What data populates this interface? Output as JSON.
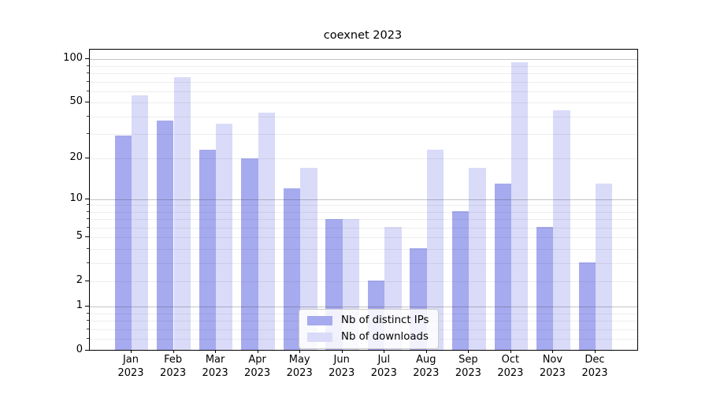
{
  "chart_title": "coexnet 2023",
  "colors": {
    "distinct_ips_bar": "#a6aaef",
    "downloads_bar": "#d9dbf8",
    "grid_major": "#b8b8b8",
    "grid_minor": "#ebebeb",
    "axis": "#000000",
    "legend_border": "#cccccc"
  },
  "chart_data": {
    "type": "bar",
    "title": "coexnet 2023",
    "categories": [
      "Jan 2023",
      "Feb 2023",
      "Mar 2023",
      "Apr 2023",
      "May 2023",
      "Jun 2023",
      "Jul 2023",
      "Aug 2023",
      "Sep 2023",
      "Oct 2023",
      "Nov 2023",
      "Dec 2023"
    ],
    "x_months": [
      "Jan",
      "Feb",
      "Mar",
      "Apr",
      "May",
      "Jun",
      "Jul",
      "Aug",
      "Sep",
      "Oct",
      "Nov",
      "Dec"
    ],
    "x_year": "2023",
    "series": [
      {
        "name": "Nb of distinct IPs",
        "color": "#a6aaef",
        "values": [
          29,
          37,
          23,
          20,
          12,
          7,
          2,
          4,
          8,
          13,
          6,
          3
        ]
      },
      {
        "name": "Nb of downloads",
        "color": "#d9dbf8",
        "values": [
          56,
          75,
          35,
          42,
          17,
          7,
          6,
          23,
          17,
          95,
          44,
          13
        ]
      }
    ],
    "xlabel": "",
    "ylabel": "",
    "yscale": "log1p",
    "ylim": [
      0,
      117
    ],
    "yticks": [
      0,
      1,
      2,
      5,
      10,
      20,
      50,
      100
    ],
    "ytick_labels": [
      "0",
      "1",
      "2",
      "5",
      "10",
      "20",
      "50",
      "100"
    ],
    "grid_major_values": [
      1,
      10,
      100
    ],
    "grid_minor_values": [
      0.2,
      0.4,
      0.6,
      0.8,
      2,
      3,
      4,
      5,
      6,
      7,
      8,
      9,
      20,
      30,
      40,
      50,
      60,
      70,
      80,
      90
    ],
    "grid": true,
    "legend_position": "lower center"
  }
}
